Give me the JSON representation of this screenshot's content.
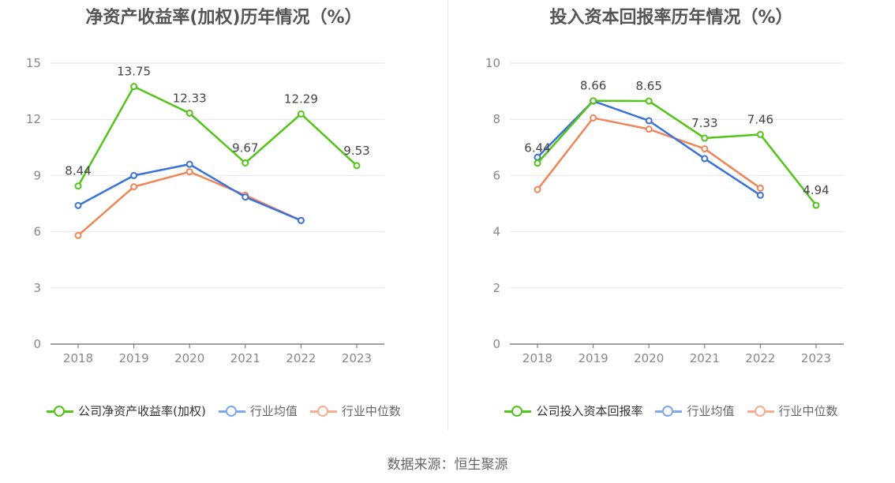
{
  "source_text": "数据来源：恒生聚源",
  "chart_data": [
    {
      "type": "line",
      "title": "净资产收益率(加权)历年情况（%）",
      "categories": [
        "2018",
        "2019",
        "2020",
        "2021",
        "2022",
        "2023"
      ],
      "ylim": [
        0,
        15
      ],
      "yticks": [
        0,
        3,
        6,
        9,
        12,
        15
      ],
      "grid": true,
      "legend_position": "bottom",
      "series": [
        {
          "name": "公司净资产收益率(加权)",
          "color": "#52c41a",
          "values": [
            8.44,
            13.75,
            12.33,
            9.67,
            12.29,
            9.53
          ],
          "labels": [
            "8.44",
            "13.75",
            "12.33",
            "9.67",
            "12.29",
            "9.53"
          ]
        },
        {
          "name": "行业均值",
          "color": "#3b72d9",
          "values": [
            7.4,
            9.0,
            9.6,
            7.85,
            6.6,
            null
          ],
          "labels": []
        },
        {
          "name": "行业中位数",
          "color": "#f0855a",
          "values": [
            5.8,
            8.4,
            9.2,
            7.95,
            6.6,
            null
          ],
          "labels": []
        }
      ]
    },
    {
      "type": "line",
      "title": "投入资本回报率历年情况（%）",
      "categories": [
        "2018",
        "2019",
        "2020",
        "2021",
        "2022",
        "2023"
      ],
      "ylim": [
        0,
        10
      ],
      "yticks": [
        0,
        2,
        4,
        6,
        8,
        10
      ],
      "grid": true,
      "legend_position": "bottom",
      "series": [
        {
          "name": "公司投入资本回报率",
          "color": "#52c41a",
          "values": [
            6.44,
            8.66,
            8.65,
            7.33,
            7.46,
            4.94
          ],
          "labels": [
            "6.44",
            "8.66",
            "8.65",
            "7.33",
            "7.46",
            "4.94"
          ]
        },
        {
          "name": "行业均值",
          "color": "#3b72d9",
          "values": [
            6.65,
            8.65,
            7.95,
            6.6,
            5.3,
            null
          ],
          "labels": []
        },
        {
          "name": "行业中位数",
          "color": "#f0855a",
          "values": [
            5.5,
            8.05,
            7.65,
            6.95,
            5.55,
            null
          ],
          "labels": []
        }
      ]
    }
  ],
  "legend_colors": [
    "#52c41a",
    "#7fa7ee",
    "#f5ae90"
  ]
}
